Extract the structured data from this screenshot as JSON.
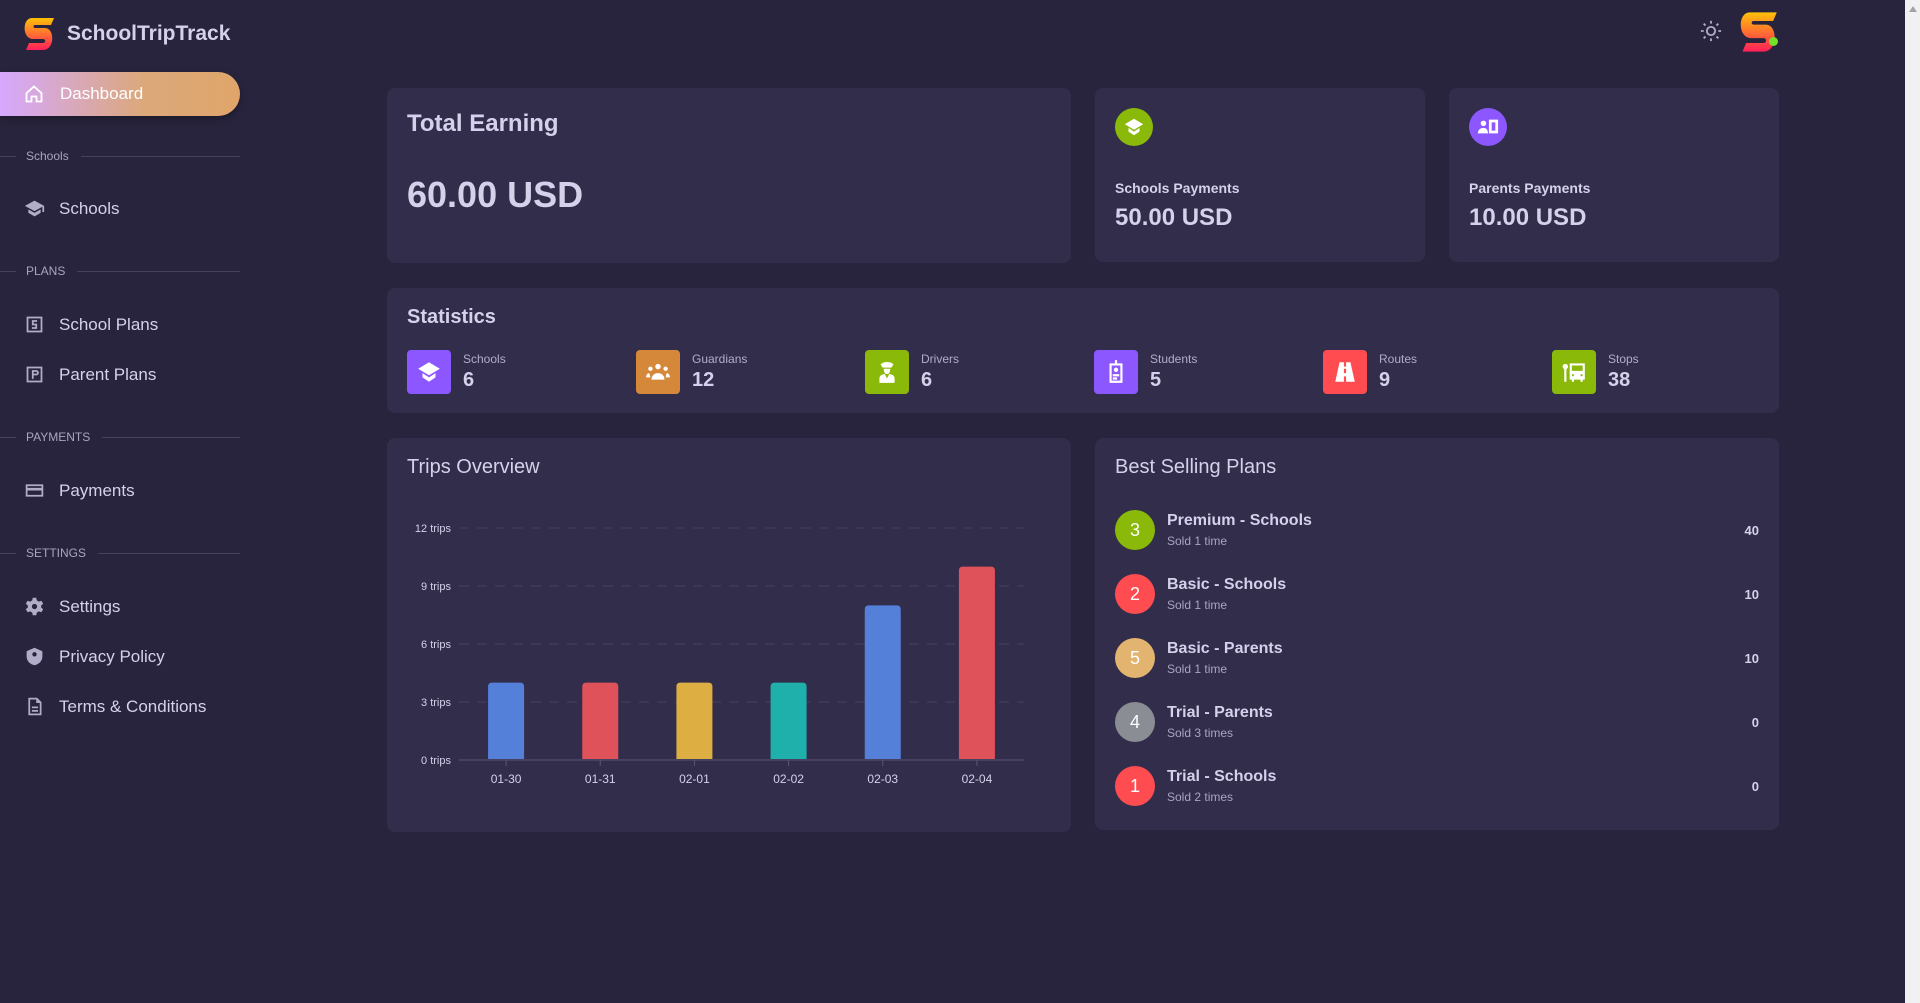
{
  "app": {
    "title": "SchoolTripTrack"
  },
  "sidebar": {
    "active": "Dashboard",
    "sections": {
      "schools": "Schools",
      "plans": "PLANS",
      "payments": "PAYMENTS",
      "settings": "SETTINGS"
    },
    "items": {
      "schools": "Schools",
      "school_plans": "School Plans",
      "parent_plans": "Parent Plans",
      "payments": "Payments",
      "settings": "Settings",
      "privacy": "Privacy Policy",
      "terms": "Terms & Conditions"
    }
  },
  "earning": {
    "title": "Total Earning",
    "value": "60.00 USD"
  },
  "schools_payments": {
    "label": "Schools Payments",
    "value": "50.00 USD",
    "color": "#8ab909"
  },
  "parents_payments": {
    "label": "Parents Payments",
    "value": "10.00 USD",
    "color": "#8c57ff"
  },
  "statistics": {
    "title": "Statistics",
    "items": [
      {
        "label": "Schools",
        "value": "6",
        "color": "#8c57ff",
        "icon": "school-icon"
      },
      {
        "label": "Guardians",
        "value": "12",
        "color": "#d6883a",
        "icon": "guardians-icon"
      },
      {
        "label": "Drivers",
        "value": "6",
        "color": "#8ab909",
        "icon": "driver-icon"
      },
      {
        "label": "Students",
        "value": "5",
        "color": "#8c57ff",
        "icon": "student-badge-icon"
      },
      {
        "label": "Routes",
        "value": "9",
        "color": "#ff4c51",
        "icon": "road-icon"
      },
      {
        "label": "Stops",
        "value": "38",
        "color": "#8ab909",
        "icon": "bus-stop-icon"
      }
    ]
  },
  "chart_data": {
    "type": "bar",
    "title": "Trips Overview",
    "categories": [
      "01-30",
      "01-31",
      "02-01",
      "02-02",
      "02-03",
      "02-04"
    ],
    "values": [
      4,
      4,
      4,
      4,
      8,
      10
    ],
    "colors": [
      "#5480d9",
      "#e0525a",
      "#ddae42",
      "#1fb0ab",
      "#5480d9",
      "#e0525a"
    ],
    "yticks": [
      0,
      3,
      6,
      9,
      12
    ],
    "ytick_labels": [
      "0 trips",
      "3 trips",
      "6 trips",
      "9 trips",
      "12 trips"
    ],
    "ylim": [
      0,
      12
    ],
    "grid": true
  },
  "best_selling": {
    "title": "Best Selling Plans",
    "items": [
      {
        "num": "3",
        "name": "Premium - Schools",
        "sold": "Sold 1 time",
        "price": "40",
        "color": "#8ab909"
      },
      {
        "num": "2",
        "name": "Basic - Schools",
        "sold": "Sold 1 time",
        "price": "10",
        "color": "#ff4c51"
      },
      {
        "num": "5",
        "name": "Basic - Parents",
        "sold": "Sold 1 time",
        "price": "10",
        "color": "#e2b46f"
      },
      {
        "num": "4",
        "name": "Trial - Parents",
        "sold": "Sold 3 times",
        "price": "0",
        "color": "#8a8d93"
      },
      {
        "num": "1",
        "name": "Trial - Schools",
        "sold": "Sold 2 times",
        "price": "0",
        "color": "#ff4c51"
      }
    ]
  }
}
